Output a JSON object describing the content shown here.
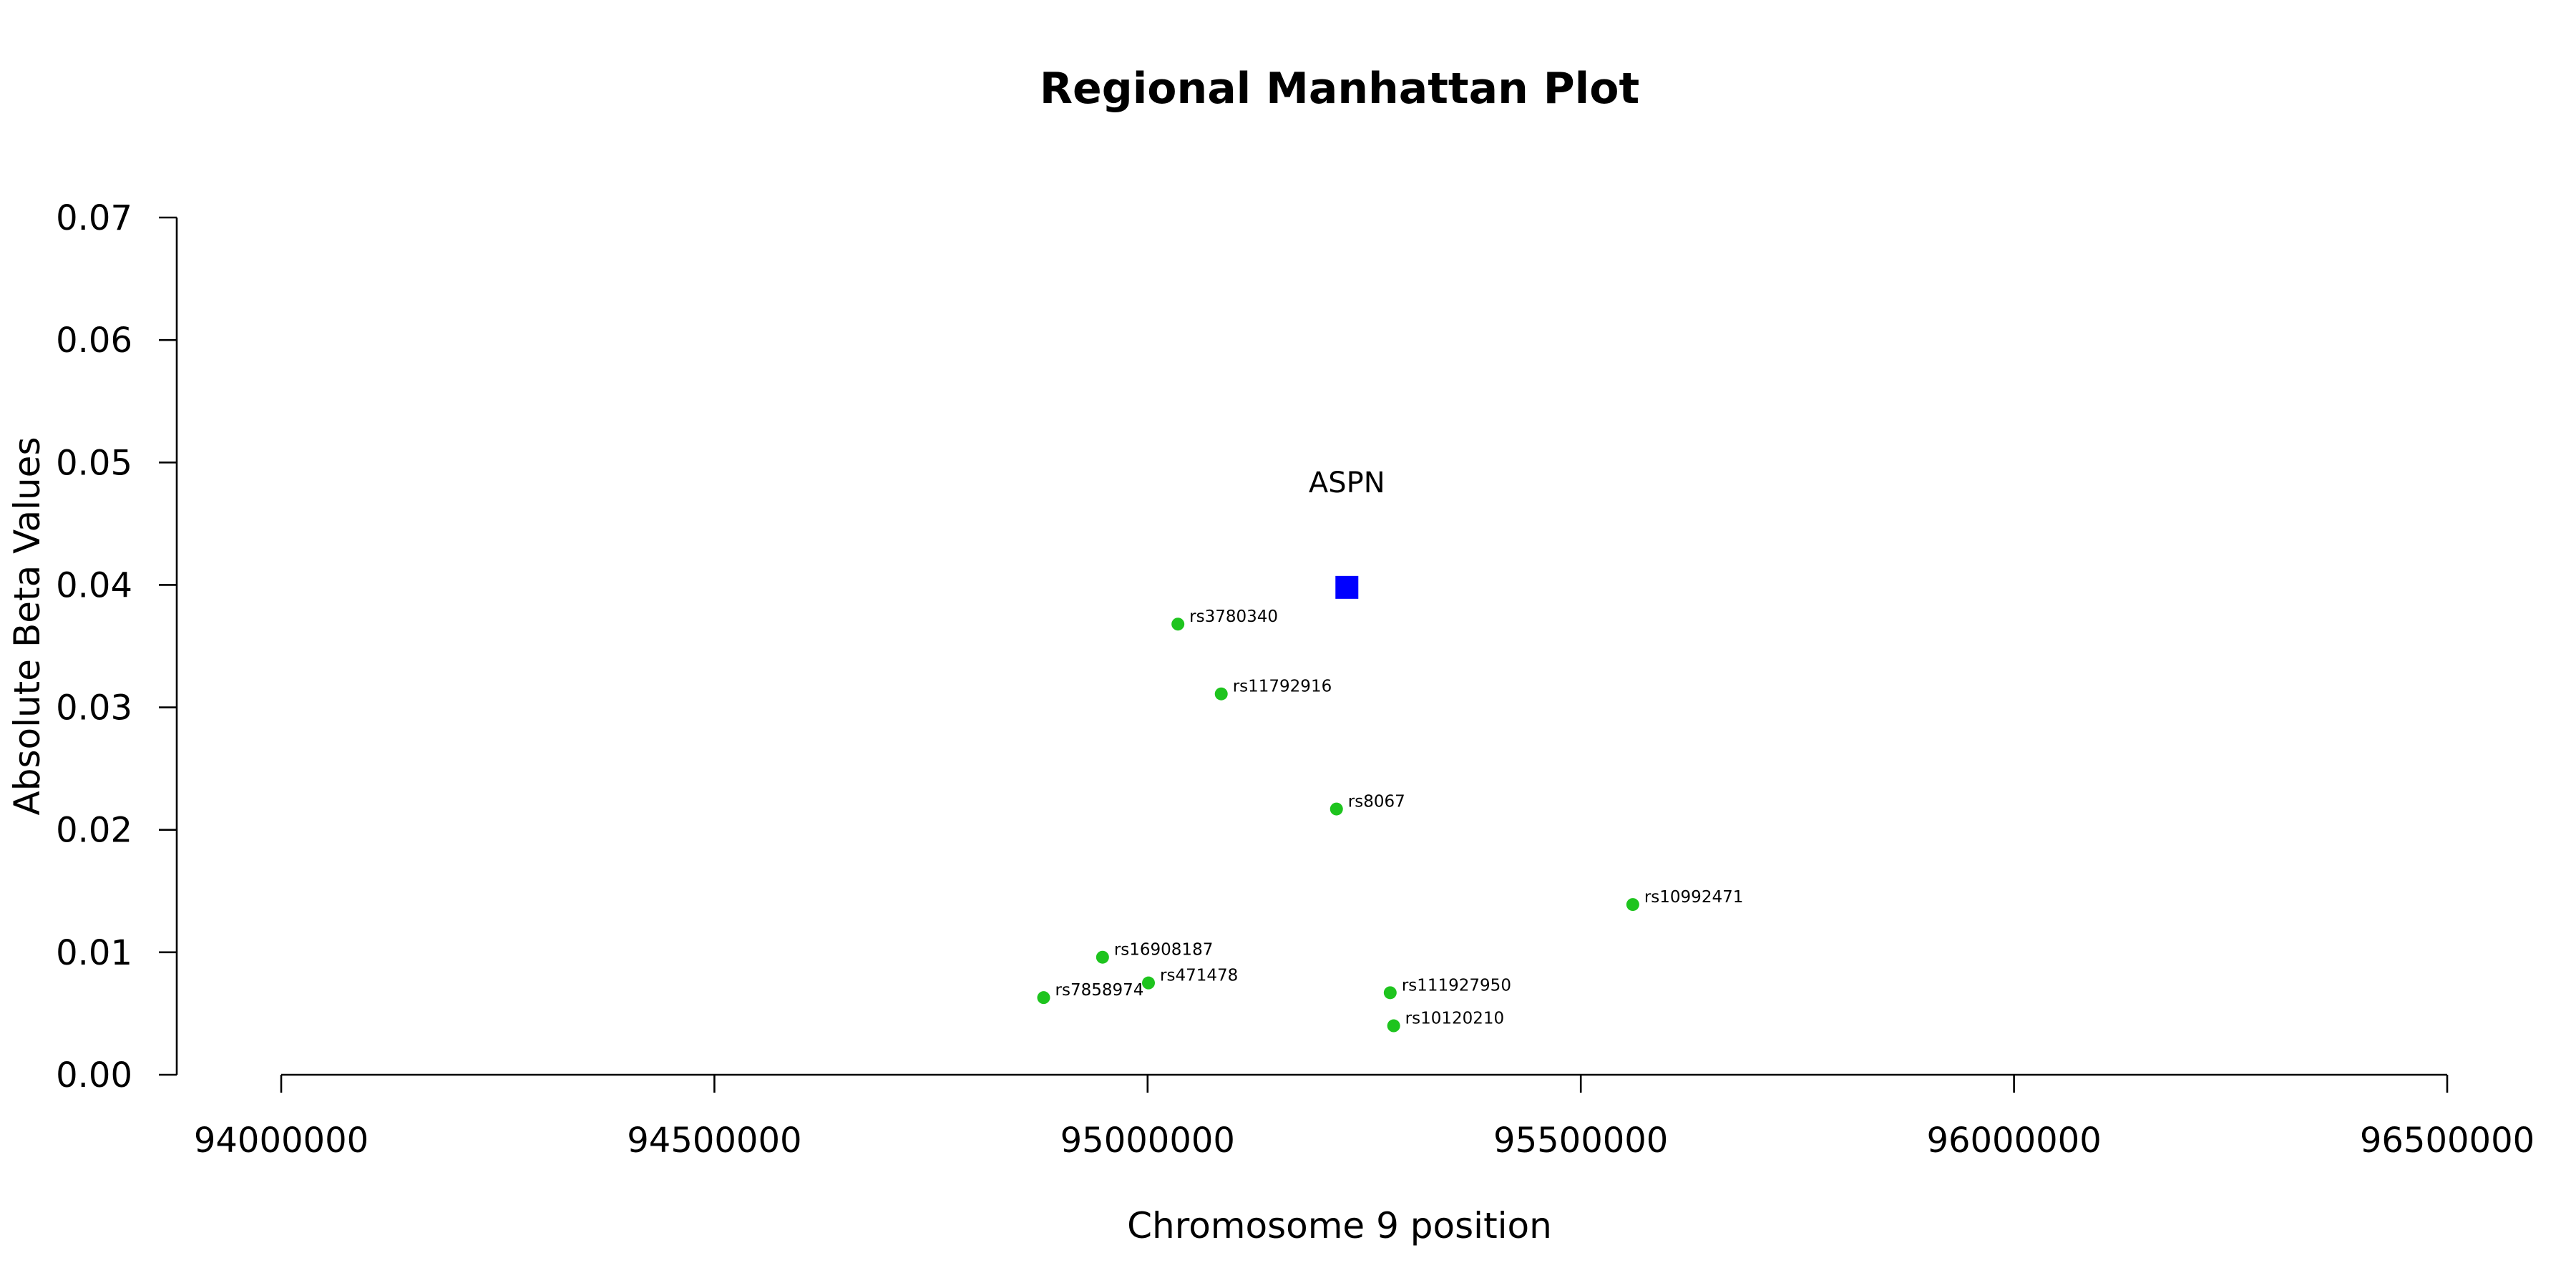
{
  "chart_data": {
    "type": "scatter",
    "title": "Regional Manhattan Plot",
    "xlabel": "Chromosome 9 position",
    "ylabel": "Absolute Beta Values",
    "xlim": [
      94000000,
      96500000
    ],
    "ylim": [
      0,
      0.07
    ],
    "x_ticks": [
      "94000000",
      "94500000",
      "95000000",
      "95500000",
      "96000000",
      "96500000"
    ],
    "y_ticks": [
      "0.00",
      "0.01",
      "0.02",
      "0.03",
      "0.04",
      "0.05",
      "0.06",
      "0.07"
    ],
    "grid": false,
    "colors": {
      "snp": "#1ec41e",
      "gene": "#0000ff"
    },
    "gene": {
      "name": "ASPN",
      "x": 95230000,
      "y": 0.0398
    },
    "points": [
      {
        "label": "rs3780340",
        "x": 95035000,
        "y": 0.0368
      },
      {
        "label": "rs11792916",
        "x": 95085000,
        "y": 0.0311
      },
      {
        "label": "rs8067",
        "x": 95218000,
        "y": 0.0217
      },
      {
        "label": "rs10992471",
        "x": 95560000,
        "y": 0.0139
      },
      {
        "label": "rs16908187",
        "x": 94948000,
        "y": 0.0096
      },
      {
        "label": "rs471478",
        "x": 95001000,
        "y": 0.0075
      },
      {
        "label": "rs7858974",
        "x": 94880000,
        "y": 0.0063
      },
      {
        "label": "rs111927950",
        "x": 95280000,
        "y": 0.0067
      },
      {
        "label": "rs10120210",
        "x": 95284000,
        "y": 0.004
      }
    ]
  }
}
